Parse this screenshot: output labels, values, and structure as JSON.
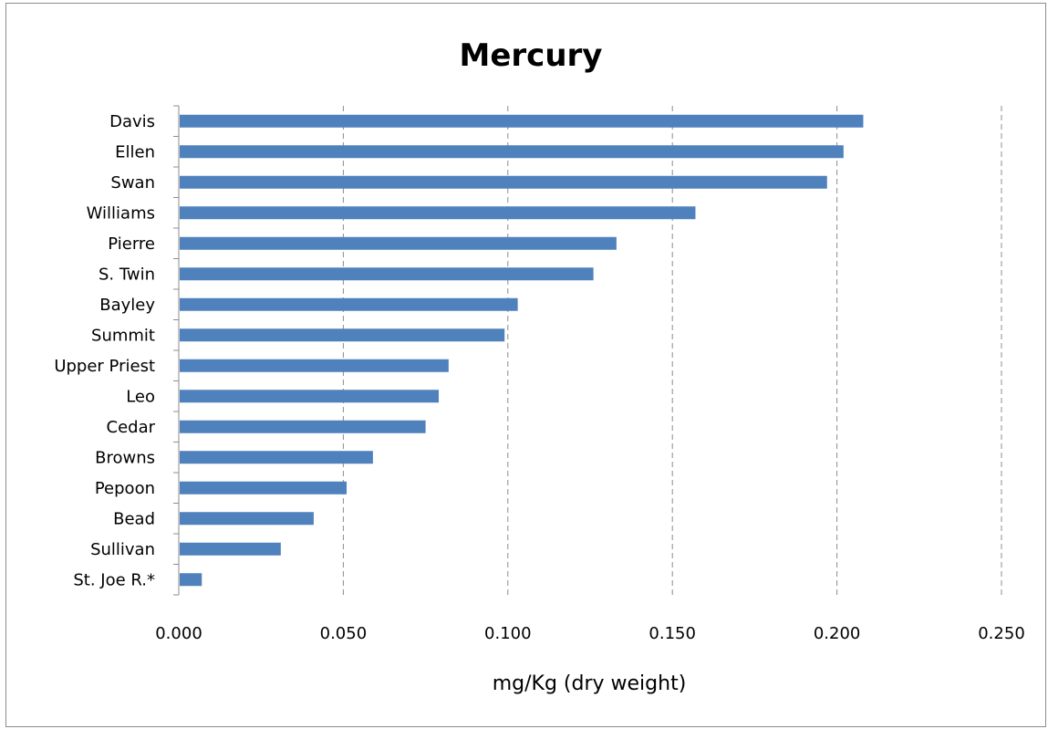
{
  "chart_data": {
    "type": "bar",
    "orientation": "horizontal",
    "title": "Mercury",
    "xlabel": "mg/Kg (dry weight)",
    "ylabel": "",
    "categories": [
      "Davis",
      "Ellen",
      "Swan",
      "Williams",
      "Pierre",
      "S. Twin",
      "Bayley",
      "Summit",
      "Upper Priest",
      "Leo",
      "Cedar",
      "Browns",
      "Pepoon",
      "Bead",
      "Sullivan",
      "St. Joe R.*"
    ],
    "values": [
      0.208,
      0.202,
      0.197,
      0.157,
      0.133,
      0.126,
      0.103,
      0.099,
      0.082,
      0.079,
      0.075,
      0.059,
      0.051,
      0.041,
      0.031,
      0.007
    ],
    "xlim": [
      0,
      0.25
    ],
    "xticks": [
      "0.000",
      "0.050",
      "0.100",
      "0.150",
      "0.200",
      "0.250"
    ],
    "grid": "vertical dashed",
    "legend": "none",
    "bar_color": "#4f81bd"
  }
}
